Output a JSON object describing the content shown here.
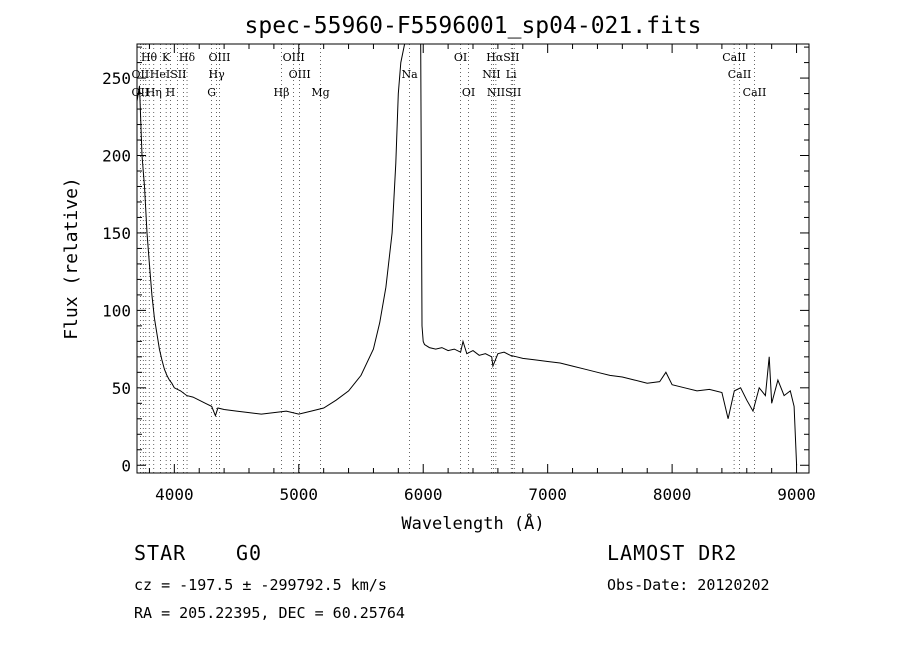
{
  "chart_data": {
    "type": "line",
    "title": "spec-55960-F5596001_sp04-021.fits",
    "xlabel": "Wavelength (Å)",
    "ylabel": "Flux (relative)",
    "xlim": [
      3700,
      9100
    ],
    "ylim": [
      -5,
      272
    ],
    "x_ticks": [
      4000,
      5000,
      6000,
      7000,
      8000,
      9000
    ],
    "y_ticks": [
      0,
      50,
      100,
      150,
      200,
      250
    ],
    "grid": false,
    "series": [
      {
        "x": [
          3700,
          3720,
          3740,
          3760,
          3780,
          3800,
          3820,
          3840,
          3860,
          3880,
          3900,
          3920,
          3940,
          3960,
          3980,
          4000,
          4050,
          4100,
          4150,
          4200,
          4250,
          4300,
          4330,
          4350,
          4400,
          4500,
          4600,
          4700,
          4800,
          4900,
          5000,
          5100,
          5200,
          5300,
          5400,
          5500,
          5600,
          5650,
          5700,
          5750,
          5780,
          5800,
          5820,
          5850,
          5880,
          5900,
          5920,
          5940,
          5960,
          5980,
          5990,
          6000,
          6010,
          6050,
          6100,
          6150,
          6200,
          6250,
          6300,
          6320,
          6350,
          6400,
          6450,
          6500,
          6550,
          6560,
          6600,
          6650,
          6700,
          6750,
          6800,
          6900,
          7000,
          7100,
          7200,
          7300,
          7400,
          7500,
          7600,
          7700,
          7800,
          7900,
          7950,
          8000,
          8100,
          8200,
          8300,
          8400,
          8450,
          8500,
          8550,
          8600,
          8650,
          8700,
          8750,
          8780,
          8800,
          8850,
          8900,
          8950,
          8980,
          9000
        ],
        "y": [
          235,
          245,
          200,
          180,
          150,
          130,
          110,
          95,
          85,
          75,
          68,
          62,
          58,
          55,
          53,
          50,
          48,
          45,
          44,
          42,
          40,
          38,
          32,
          37,
          36,
          35,
          34,
          33,
          34,
          35,
          33,
          35,
          37,
          42,
          48,
          58,
          75,
          92,
          115,
          150,
          195,
          240,
          260,
          272,
          272,
          272,
          272,
          272,
          272,
          272,
          90,
          80,
          78,
          76,
          75,
          76,
          74,
          75,
          73,
          80,
          72,
          74,
          71,
          72,
          70,
          64,
          72,
          73,
          71,
          70,
          69,
          68,
          67,
          66,
          64,
          62,
          60,
          58,
          57,
          55,
          53,
          54,
          60,
          52,
          50,
          48,
          49,
          47,
          30,
          48,
          50,
          42,
          35,
          50,
          45,
          70,
          40,
          55,
          45,
          48,
          38,
          0
        ]
      }
    ],
    "lines_dotted": [
      3727,
      3750,
      3771,
      3798,
      3835,
      3889,
      3934,
      3969,
      4026,
      4072,
      4102,
      4300,
      4340,
      4363,
      4861,
      4959,
      5007,
      5175,
      5890,
      6300,
      6364,
      6548,
      6563,
      6584,
      6707,
      6717,
      6731,
      8498,
      8542,
      8662
    ],
    "line_labels": [
      {
        "text": "Hθ",
        "w": 3797,
        "row": 0
      },
      {
        "text": "K",
        "w": 3934,
        "row": 0
      },
      {
        "text": "Hδ",
        "w": 4102,
        "row": 0
      },
      {
        "text": "OIII",
        "w": 4363,
        "row": 0
      },
      {
        "text": "OIII",
        "w": 4959,
        "row": 0
      },
      {
        "text": "OI",
        "w": 6300,
        "row": 0
      },
      {
        "text": "HαSII",
        "w": 6640,
        "row": 0
      },
      {
        "text": "CaII",
        "w": 8498,
        "row": 0
      },
      {
        "text": "OII",
        "w": 3727,
        "row": 1
      },
      {
        "text": "HeISII",
        "w": 3950,
        "row": 1
      },
      {
        "text": "Hγ",
        "w": 4340,
        "row": 1
      },
      {
        "text": "OIII",
        "w": 5007,
        "row": 1
      },
      {
        "text": "Na",
        "w": 5890,
        "row": 1
      },
      {
        "text": "NII",
        "w": 6548,
        "row": 1
      },
      {
        "text": "Li",
        "w": 6707,
        "row": 1
      },
      {
        "text": "CaII",
        "w": 8542,
        "row": 1
      },
      {
        "text": "OII",
        "w": 3727,
        "row": 2
      },
      {
        "text": "Hη",
        "w": 3835,
        "row": 2
      },
      {
        "text": "H",
        "w": 3969,
        "row": 2
      },
      {
        "text": "G",
        "w": 4300,
        "row": 2
      },
      {
        "text": "Hβ",
        "w": 4861,
        "row": 2
      },
      {
        "text": "Mg",
        "w": 5175,
        "row": 2
      },
      {
        "text": "OI",
        "w": 6364,
        "row": 2
      },
      {
        "text": "NIISII",
        "w": 6650,
        "row": 2
      },
      {
        "text": "CaII",
        "w": 8662,
        "row": 2
      }
    ]
  },
  "footer": {
    "class": "STAR",
    "subclass": "G0",
    "survey": "LAMOST DR2",
    "cz": "cz = -197.5 ± -299792.5 km/s",
    "obs_date": "Obs-Date: 20120202",
    "radec": "RA = 205.22395, DEC =  60.25764"
  }
}
